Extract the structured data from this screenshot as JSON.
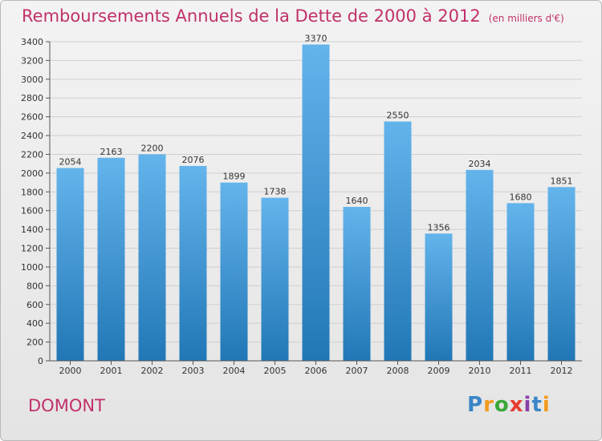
{
  "title": "Remboursements Annuels de la Dette de 2000 à 2012",
  "unit": "(en milliers d'€)",
  "city": "DOMONT",
  "logo": {
    "text": "Proxiti",
    "colors": [
      "#3a86c8",
      "#f39a1e",
      "#3aa838",
      "#e63c2f",
      "#8a3fa8",
      "#3a86c8",
      "#f39a1e"
    ]
  },
  "colors": {
    "accent": "#c0306a",
    "bar_top": "#64b4ec",
    "bar_bottom": "#2177b6"
  },
  "chart_data": {
    "type": "bar",
    "categories": [
      "2000",
      "2001",
      "2002",
      "2003",
      "2004",
      "2005",
      "2006",
      "2007",
      "2008",
      "2009",
      "2010",
      "2011",
      "2012"
    ],
    "values": [
      2054,
      2163,
      2200,
      2076,
      1899,
      1738,
      3370,
      1640,
      2550,
      1356,
      2034,
      1680,
      1851
    ],
    "ylim": [
      0,
      3400
    ],
    "yticks": [
      0,
      200,
      400,
      600,
      800,
      1000,
      1200,
      1400,
      1600,
      1800,
      2000,
      2200,
      2400,
      2600,
      2800,
      3000,
      3200,
      3400
    ],
    "grid": true
  }
}
